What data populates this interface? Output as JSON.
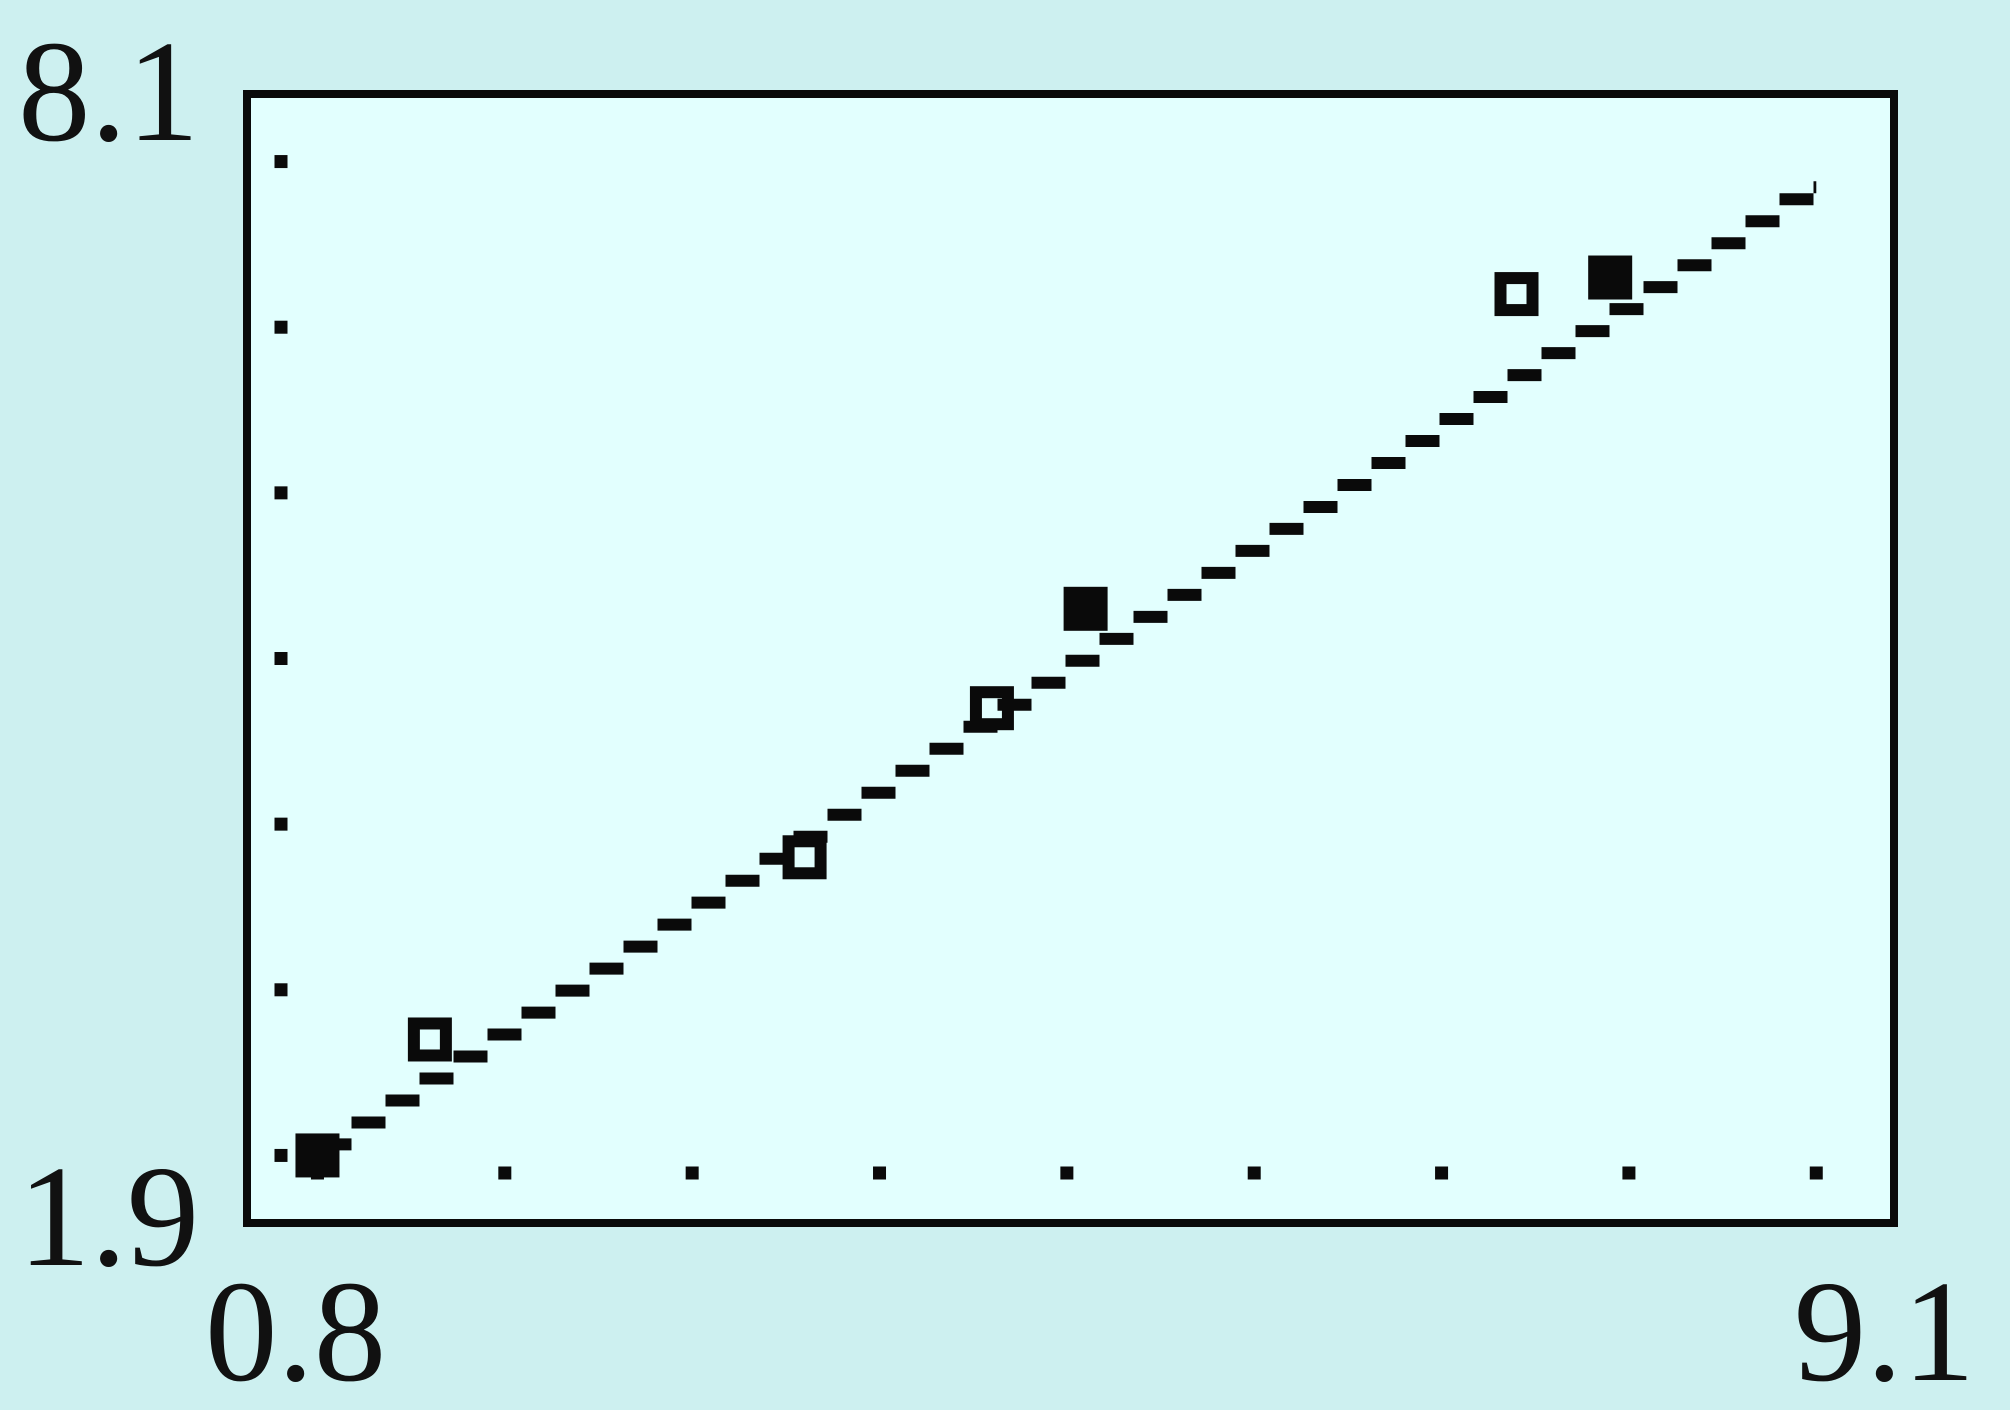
{
  "colors": {
    "background": "#cdf0f0",
    "plot_background": "#e2fffe",
    "ink": "#0a0a0a"
  },
  "chart_data": {
    "type": "scatter",
    "xlim": [
      0.8,
      9.1
    ],
    "ylim": [
      1.9,
      8.1
    ],
    "x_tick_labels": {
      "min": "0.8",
      "max": "9.1"
    },
    "y_tick_labels": {
      "min": "1.9",
      "max": "8.1"
    },
    "x_ticks": [
      1,
      2,
      3,
      4,
      5,
      6,
      7,
      8,
      9
    ],
    "y_ticks": [
      2,
      3,
      4,
      5,
      6,
      7,
      8
    ],
    "grid": false,
    "legend": "none",
    "series": [
      {
        "points": [
          [
            1.0,
            2.0
          ],
          [
            1.6,
            2.7
          ],
          [
            3.6,
            3.8
          ],
          [
            4.6,
            4.7
          ],
          [
            5.1,
            5.3
          ],
          [
            7.4,
            7.2
          ],
          [
            7.9,
            7.3
          ]
        ],
        "markers": [
          "filled",
          "hollow",
          "hollow",
          "hollow",
          "filled",
          "hollow",
          "filled"
        ]
      }
    ],
    "regression_line": {
      "x": [
        1.0,
        9.0
      ],
      "y": [
        2.0,
        7.85
      ]
    }
  }
}
